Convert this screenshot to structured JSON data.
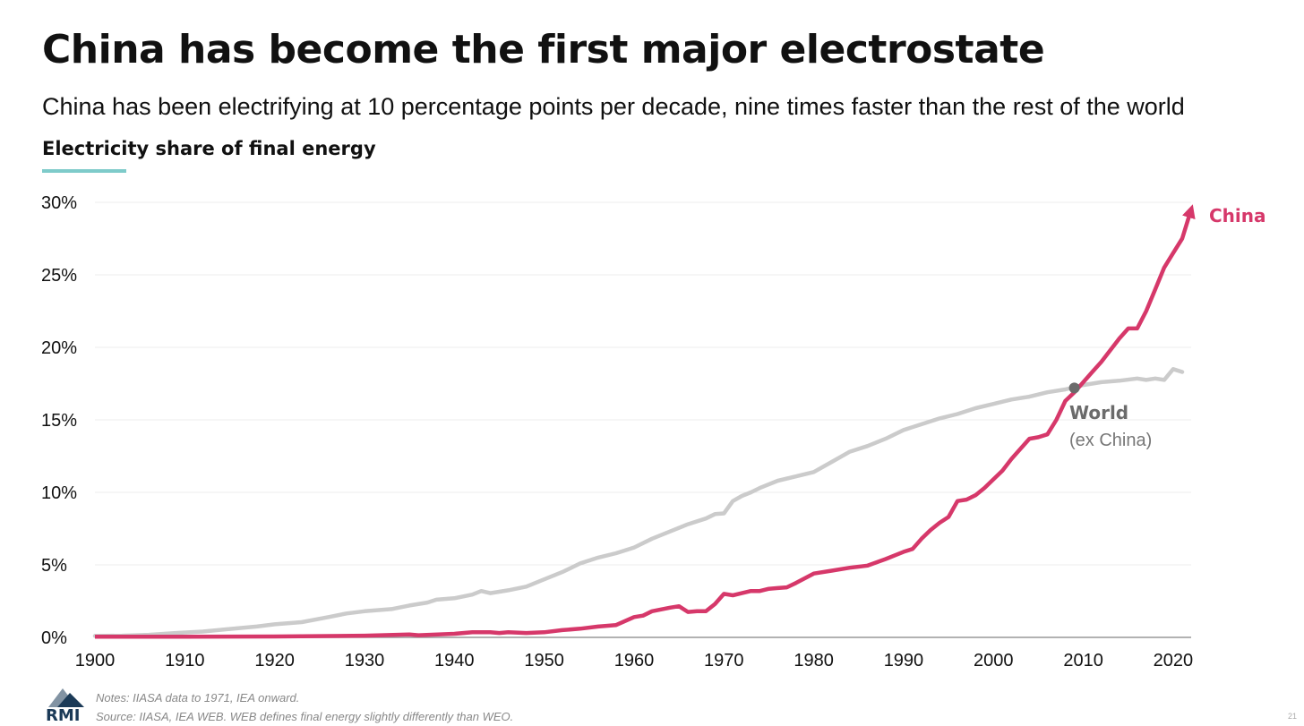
{
  "title": "China has become the first major electrostate",
  "subtitle": "China has been electrifying at 10 percentage points per decade, nine times faster than the rest of the world",
  "chart_label": "Electricity share of final energy",
  "notes": "Notes: IIASA data to 1971, IEA onward.",
  "source": "Source: IIASA, IEA WEB. WEB defines final energy slightly differently than WEO.",
  "logo_text": "RMI",
  "page_number": "21",
  "colors": {
    "china": "#d6386a",
    "world": "#cbcbcb",
    "accent_underline": "#7ecbca",
    "marker": "#6b6b6b",
    "logo": "#1b3a57"
  },
  "chart_data": {
    "type": "line",
    "xlim": [
      1900,
      2022
    ],
    "ylim": [
      0,
      30
    ],
    "x_ticks": [
      1900,
      1910,
      1920,
      1930,
      1940,
      1950,
      1960,
      1970,
      1980,
      1990,
      2000,
      2010,
      2020
    ],
    "x_tick_labels": [
      "1900",
      "1910",
      "1920",
      "1930",
      "1940",
      "1950",
      "1960",
      "1970",
      "1980",
      "1990",
      "2000",
      "2010",
      "2020"
    ],
    "y_ticks": [
      0,
      5,
      10,
      15,
      20,
      25,
      30
    ],
    "y_tick_labels": [
      "0%",
      "5%",
      "10%",
      "15%",
      "20%",
      "25%",
      "30%"
    ],
    "grid": true,
    "legend": "direct labels at line ends",
    "series": [
      {
        "name": "World",
        "label_line1": "World",
        "label_line2": "(ex China)",
        "color": "#cbcbcb",
        "x": [
          1900,
          1903,
          1906,
          1909,
          1912,
          1915,
          1918,
          1920,
          1923,
          1926,
          1928,
          1930,
          1933,
          1935,
          1937,
          1938,
          1940,
          1942,
          1943,
          1944,
          1946,
          1948,
          1950,
          1952,
          1954,
          1956,
          1958,
          1960,
          1962,
          1964,
          1966,
          1968,
          1969,
          1970,
          1971,
          1972,
          1973,
          1974,
          1976,
          1978,
          1980,
          1982,
          1984,
          1986,
          1988,
          1990,
          1992,
          1994,
          1996,
          1998,
          2000,
          2002,
          2004,
          2006,
          2008,
          2010,
          2012,
          2014,
          2016,
          2017,
          2018,
          2019,
          2020,
          2021
        ],
        "y": [
          0.1,
          0.12,
          0.18,
          0.3,
          0.4,
          0.58,
          0.75,
          0.9,
          1.05,
          1.4,
          1.65,
          1.8,
          1.95,
          2.2,
          2.4,
          2.6,
          2.7,
          2.95,
          3.2,
          3.05,
          3.25,
          3.5,
          4.0,
          4.5,
          5.1,
          5.5,
          5.8,
          6.2,
          6.8,
          7.3,
          7.8,
          8.2,
          8.5,
          8.55,
          9.4,
          9.75,
          10.0,
          10.3,
          10.8,
          11.1,
          11.4,
          12.1,
          12.8,
          13.2,
          13.7,
          14.3,
          14.7,
          15.1,
          15.4,
          15.8,
          16.1,
          16.4,
          16.6,
          16.9,
          17.1,
          17.4,
          17.6,
          17.7,
          17.85,
          17.75,
          17.85,
          17.75,
          18.5,
          18.3
        ]
      },
      {
        "name": "China",
        "label_line1": "China",
        "color": "#d6386a",
        "x": [
          1900,
          1910,
          1920,
          1930,
          1935,
          1936,
          1940,
          1942,
          1944,
          1945,
          1946,
          1948,
          1950,
          1952,
          1954,
          1956,
          1958,
          1960,
          1961,
          1962,
          1964,
          1965,
          1966,
          1967,
          1968,
          1969,
          1970,
          1971,
          1972,
          1973,
          1974,
          1975,
          1976,
          1977,
          1978,
          1980,
          1982,
          1984,
          1986,
          1988,
          1990,
          1991,
          1992,
          1993,
          1994,
          1995,
          1996,
          1997,
          1998,
          1999,
          2000,
          2001,
          2002,
          2003,
          2004,
          2005,
          2006,
          2007,
          2008,
          2009,
          2010,
          2011,
          2012,
          2013,
          2014,
          2015,
          2016,
          2017,
          2018,
          2019,
          2020,
          2021,
          2022
        ],
        "y": [
          0.05,
          0.05,
          0.06,
          0.12,
          0.2,
          0.15,
          0.25,
          0.35,
          0.35,
          0.3,
          0.35,
          0.3,
          0.35,
          0.5,
          0.6,
          0.75,
          0.85,
          1.4,
          1.5,
          1.8,
          2.05,
          2.15,
          1.75,
          1.8,
          1.8,
          2.3,
          3.0,
          2.9,
          3.05,
          3.2,
          3.2,
          3.35,
          3.4,
          3.45,
          3.75,
          4.4,
          4.6,
          4.8,
          4.95,
          5.4,
          5.9,
          6.1,
          6.8,
          7.4,
          7.9,
          8.3,
          9.4,
          9.5,
          9.8,
          10.3,
          10.9,
          11.5,
          12.3,
          13.0,
          13.7,
          13.8,
          14.0,
          15.0,
          16.3,
          16.9,
          17.6,
          18.3,
          19.0,
          19.8,
          20.6,
          21.3,
          21.3,
          22.5,
          24.0,
          25.5,
          26.5,
          27.5,
          29.5
        ]
      }
    ],
    "annotations": [
      {
        "text": "crossover marker",
        "x": 2009,
        "y": 17.2
      }
    ]
  }
}
